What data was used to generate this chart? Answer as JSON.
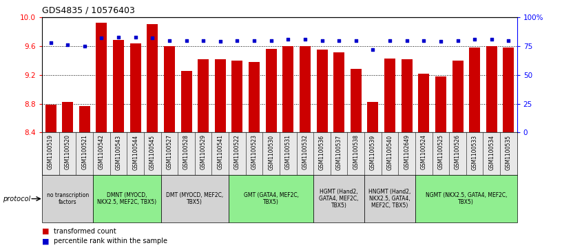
{
  "title": "GDS4835 / 10576403",
  "samples": [
    "GSM1100519",
    "GSM1100520",
    "GSM1100521",
    "GSM1100542",
    "GSM1100543",
    "GSM1100544",
    "GSM1100545",
    "GSM1100527",
    "GSM1100528",
    "GSM1100529",
    "GSM1100541",
    "GSM1100522",
    "GSM1100523",
    "GSM1100530",
    "GSM1100531",
    "GSM1100532",
    "GSM1100536",
    "GSM1100537",
    "GSM1100538",
    "GSM1100539",
    "GSM1100540",
    "GSM1102649",
    "GSM1100524",
    "GSM1100525",
    "GSM1100526",
    "GSM1100533",
    "GSM1100534",
    "GSM1100535"
  ],
  "bar_values": [
    8.79,
    8.83,
    8.77,
    9.93,
    9.69,
    9.64,
    9.91,
    9.6,
    9.26,
    9.42,
    9.42,
    9.4,
    9.38,
    9.56,
    9.6,
    9.6,
    9.55,
    9.52,
    9.29,
    8.83,
    9.43,
    9.42,
    9.22,
    9.18,
    9.4,
    9.58,
    9.6,
    9.58
  ],
  "percentile_values": [
    78,
    76,
    75,
    82,
    83,
    83,
    82,
    80,
    80,
    80,
    79,
    80,
    80,
    80,
    81,
    81,
    80,
    80,
    80,
    72,
    80,
    80,
    80,
    79,
    80,
    81,
    81,
    80
  ],
  "ylim_left": [
    8.4,
    10.0
  ],
  "ylim_right": [
    0,
    100
  ],
  "yticks_left": [
    8.4,
    8.8,
    9.2,
    9.6,
    10.0
  ],
  "yticks_right": [
    0,
    25,
    50,
    75,
    100
  ],
  "ytick_labels_right": [
    "0",
    "25",
    "50",
    "75",
    "100%"
  ],
  "bar_color": "#cc0000",
  "percentile_color": "#0000cc",
  "background_color": "#ffffff",
  "groups": [
    {
      "label": "no transcription\nfactors",
      "start": 0,
      "end": 3,
      "color": "#d3d3d3"
    },
    {
      "label": "DMNT (MYOCD,\nNKX2.5, MEF2C, TBX5)",
      "start": 3,
      "end": 7,
      "color": "#90EE90"
    },
    {
      "label": "DMT (MYOCD, MEF2C,\nTBX5)",
      "start": 7,
      "end": 11,
      "color": "#d3d3d3"
    },
    {
      "label": "GMT (GATA4, MEF2C,\nTBX5)",
      "start": 11,
      "end": 16,
      "color": "#90EE90"
    },
    {
      "label": "HGMT (Hand2,\nGATA4, MEF2C,\nTBX5)",
      "start": 16,
      "end": 19,
      "color": "#d3d3d3"
    },
    {
      "label": "HNGMT (Hand2,\nNKX2.5, GATA4,\nMEF2C, TBX5)",
      "start": 19,
      "end": 22,
      "color": "#d3d3d3"
    },
    {
      "label": "NGMT (NKX2.5, GATA4, MEF2C,\nTBX5)",
      "start": 22,
      "end": 28,
      "color": "#90EE90"
    }
  ],
  "protocol_label": "protocol",
  "legend_transformed": "transformed count",
  "legend_percentile": "percentile rank within the sample"
}
